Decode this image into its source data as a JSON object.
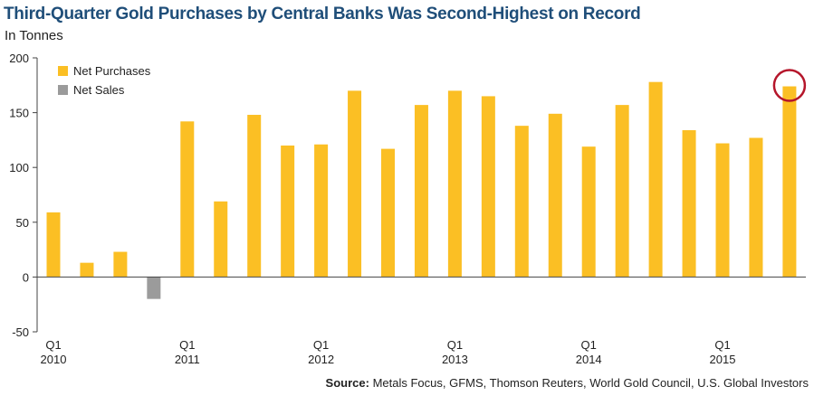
{
  "title": "Third-Quarter Gold Purchases by Central Banks Was Second-Highest on Record",
  "subtitle": "In Tonnes",
  "source_label": "Source:",
  "source_text": "Metals Focus, GFMS, Thomson Reuters, World Gold Council, U.S. Global Investors",
  "colors": {
    "purchases": "#fbbf24",
    "sales": "#9b9b9b",
    "highlight_circle": "#b5162b"
  },
  "chart_data": {
    "type": "bar",
    "ylim": [
      -50,
      200
    ],
    "yticks": [
      -50,
      0,
      50,
      100,
      150,
      200
    ],
    "grid": false,
    "legend_position": "top-left",
    "legend": [
      {
        "name": "Net Purchases",
        "color": "#fbbf24"
      },
      {
        "name": "Net Sales",
        "color": "#9b9b9b"
      }
    ],
    "categories": [
      "Q1 2010",
      "Q2 2010",
      "Q3 2010",
      "Q4 2010",
      "Q1 2011",
      "Q2 2011",
      "Q3 2011",
      "Q4 2011",
      "Q1 2012",
      "Q2 2012",
      "Q3 2012",
      "Q4 2012",
      "Q1 2013",
      "Q2 2013",
      "Q3 2013",
      "Q4 2013",
      "Q1 2014",
      "Q2 2014",
      "Q3 2014",
      "Q4 2014",
      "Q1 2015",
      "Q2 2015",
      "Q3 2015"
    ],
    "values": [
      59,
      13,
      23,
      -20,
      142,
      69,
      148,
      120,
      121,
      170,
      117,
      157,
      170,
      165,
      138,
      149,
      119,
      157,
      178,
      134,
      122,
      127,
      174
    ],
    "xtick_labels": [
      {
        "index": 0,
        "line1": "Q1",
        "line2": "2010"
      },
      {
        "index": 4,
        "line1": "Q1",
        "line2": "2011"
      },
      {
        "index": 8,
        "line1": "Q1",
        "line2": "2012"
      },
      {
        "index": 12,
        "line1": "Q1",
        "line2": "2013"
      },
      {
        "index": 16,
        "line1": "Q1",
        "line2": "2014"
      },
      {
        "index": 20,
        "line1": "Q1",
        "line2": "2015"
      }
    ],
    "highlight_index": 22
  }
}
